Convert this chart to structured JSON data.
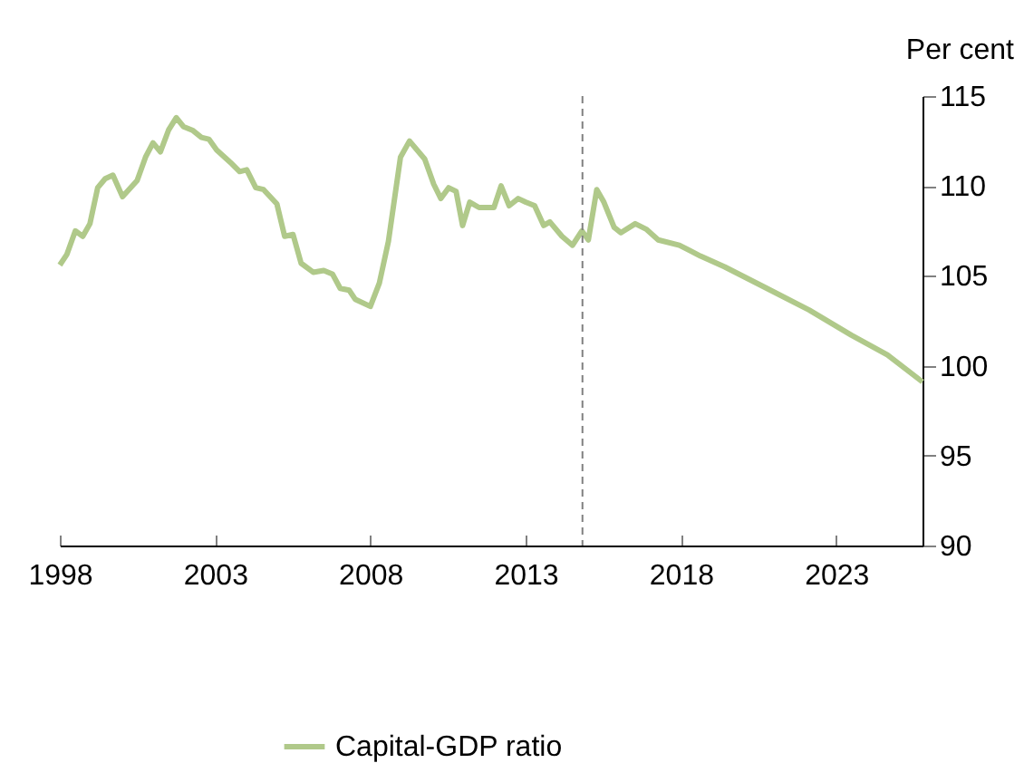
{
  "chart_data": {
    "type": "line",
    "ylabel": "Per cent",
    "x": [
      1998.0,
      1998.23,
      1998.5,
      1998.74,
      1998.97,
      1999.22,
      1999.46,
      1999.71,
      2000.02,
      2000.49,
      2000.76,
      2001.0,
      2001.24,
      2001.5,
      2001.75,
      2001.98,
      2002.27,
      2002.56,
      2002.8,
      2003.05,
      2003.5,
      2003.79,
      2004.02,
      2004.31,
      2004.56,
      2004.99,
      2005.24,
      2005.51,
      2005.77,
      2006.16,
      2006.5,
      2006.78,
      2007.03,
      2007.32,
      2007.51,
      2008.0,
      2008.29,
      2008.58,
      2008.97,
      2009.26,
      2009.75,
      2010.04,
      2010.27,
      2010.52,
      2010.76,
      2010.97,
      2011.2,
      2011.5,
      2011.98,
      2012.21,
      2012.47,
      2012.76,
      2013.0,
      2013.29,
      2013.58,
      2013.78,
      2014.17,
      2014.51,
      2014.81,
      2015.02,
      2015.29,
      2015.52,
      2015.85,
      2016.07,
      2016.53,
      2016.88,
      2017.27,
      2017.95,
      2018.63,
      2019.41,
      2020.77,
      2022.13,
      2023.49,
      2024.65,
      2025.78
    ],
    "series": [
      {
        "name": "Capital-GDP ratio",
        "color": "#b0c98a",
        "values": [
          105.6,
          106.2,
          107.5,
          107.2,
          107.9,
          109.9,
          110.4,
          110.6,
          109.4,
          110.3,
          111.6,
          112.4,
          111.9,
          113.1,
          113.8,
          113.3,
          113.1,
          112.7,
          112.6,
          112.0,
          111.3,
          110.8,
          110.9,
          109.9,
          109.8,
          109.0,
          107.2,
          107.3,
          105.7,
          105.2,
          105.3,
          105.1,
          104.3,
          104.2,
          103.7,
          103.3,
          104.6,
          106.9,
          111.6,
          112.5,
          111.5,
          110.1,
          109.3,
          109.9,
          109.7,
          107.8,
          109.1,
          108.8,
          108.8,
          110.0,
          108.9,
          109.3,
          109.1,
          108.9,
          107.8,
          108.0,
          107.2,
          106.7,
          107.5,
          107.0,
          109.8,
          109.1,
          107.7,
          107.4,
          107.9,
          107.6,
          107.0,
          106.7,
          106.1,
          105.5,
          104.3,
          103.1,
          101.7,
          100.6,
          99.1
        ]
      }
    ],
    "xlim": [
      1998,
      2025.78
    ],
    "xticks": [
      1998,
      2003,
      2008,
      2013,
      2018,
      2023
    ],
    "ylim": [
      90,
      115
    ],
    "yticks": [
      90,
      95,
      100,
      105,
      110,
      115
    ],
    "ref_lines": [
      {
        "axis": "x",
        "value": 2014.83,
        "color": "#808080",
        "line_style": "dashed"
      }
    ],
    "legend": "bottom"
  }
}
